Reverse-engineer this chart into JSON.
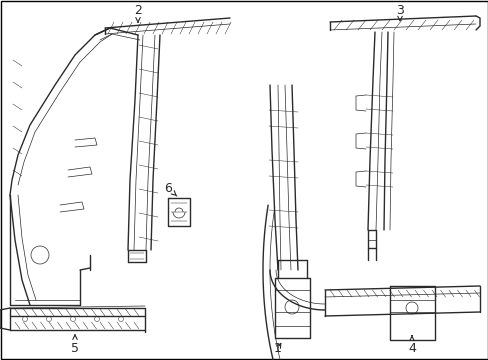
{
  "bg_color": "#ffffff",
  "line_color": "#2a2a2a",
  "lw_main": 1.0,
  "lw_thin": 0.5,
  "lw_thinner": 0.35,
  "fontsize": 9,
  "border_color": "#000000"
}
